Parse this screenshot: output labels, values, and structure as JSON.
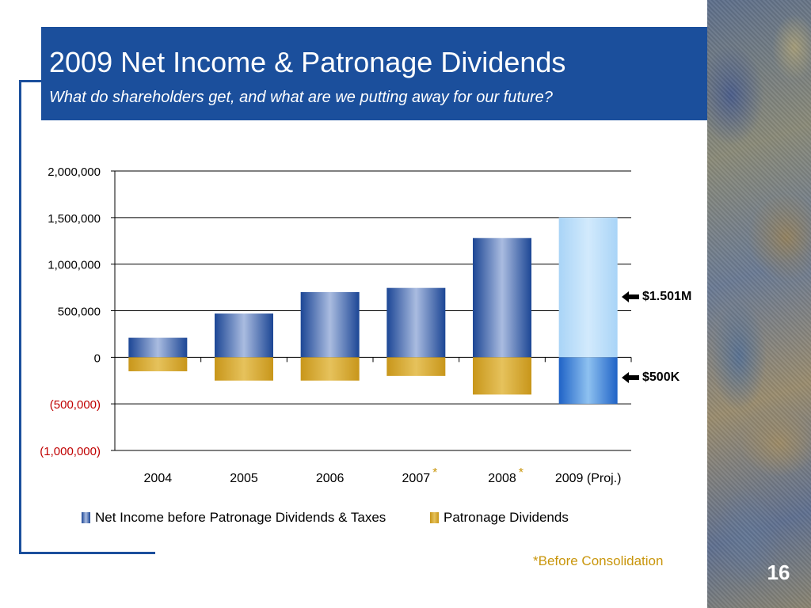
{
  "slide": {
    "title": "2009 Net Income & Patronage Dividends",
    "subtitle": "What do shareholders get, and what are we putting away for our future?",
    "page_number": "16",
    "footnote": "*Before Consolidation",
    "title_bar_color": "#1b4f9c"
  },
  "annotations": [
    {
      "text": "$1.501M",
      "icon": "arrow-left-icon"
    },
    {
      "text": "$500K",
      "icon": "arrow-left-icon"
    }
  ],
  "chart_data": {
    "type": "bar",
    "categories": [
      "2004",
      "2005",
      "2006",
      "2007",
      "2008",
      "2009 (Proj.)"
    ],
    "category_markers": [
      "",
      "",
      "",
      "*",
      "*",
      ""
    ],
    "series": [
      {
        "name": "Net Income before Patronage Dividends & Taxes",
        "values": [
          210000,
          470000,
          700000,
          745000,
          1280000,
          1501000
        ],
        "color": "#2d5aa8"
      },
      {
        "name": "Patronage Dividends",
        "values": [
          -150000,
          -250000,
          -250000,
          -200000,
          -400000,
          -500000
        ],
        "color": "#d4a72c"
      }
    ],
    "ylim": [
      -1000000,
      2000000
    ],
    "yticks": [
      {
        "value": 2000000,
        "label": "2,000,000"
      },
      {
        "value": 1500000,
        "label": "1,500,000"
      },
      {
        "value": 1000000,
        "label": "1,000,000"
      },
      {
        "value": 500000,
        "label": "500,000"
      },
      {
        "value": 0,
        "label": "0"
      },
      {
        "value": -500000,
        "label": "(500,000)"
      },
      {
        "value": -1000000,
        "label": "(1,000,000)"
      }
    ],
    "grid": true,
    "legend_position": "bottom",
    "negative_label_color": "#c00000",
    "marker_color": "#c9960c"
  }
}
